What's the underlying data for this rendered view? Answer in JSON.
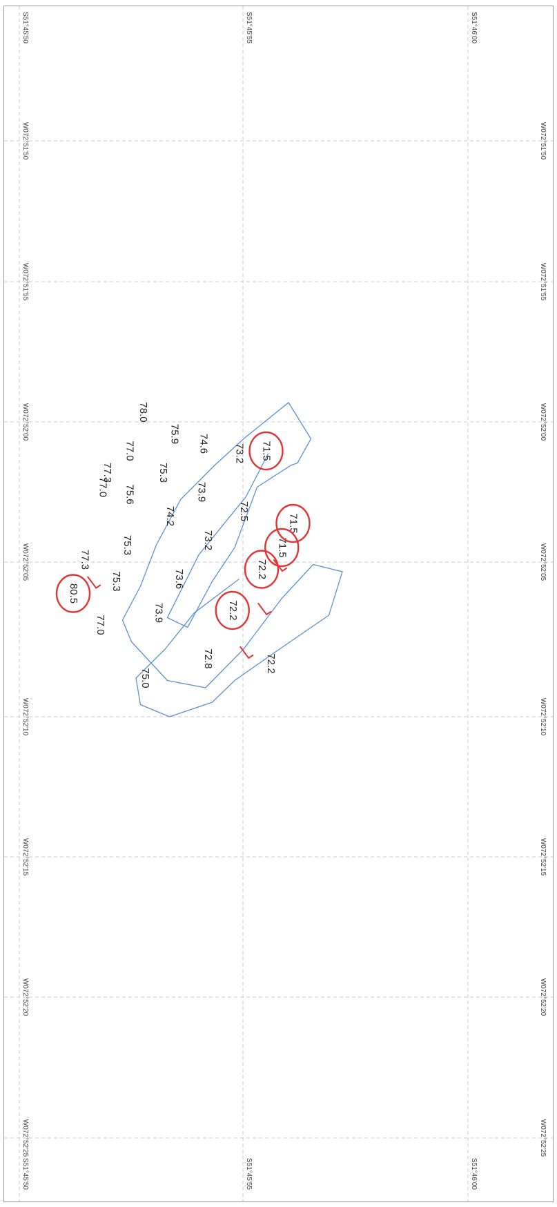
{
  "map": {
    "border_color": "#9a9a9a",
    "grid_color": "#c8c8c8",
    "track_color": "#5b8fd6",
    "circle_color": "#e23434",
    "lon_labels": [
      "W072°52'25",
      "W072°52'20",
      "W072°52'15",
      "W072°52'10",
      "W072°52'05",
      "W072°52'00",
      "W072°51'55",
      "W072°51'50"
    ],
    "lat_labels": [
      "S51°45'50",
      "S51°45'55",
      "S51°46'00"
    ],
    "track": [
      [
        5.55,
        5.45
      ],
      [
        5.05,
        4.55
      ],
      [
        4.0,
        3.35
      ],
      [
        3.3,
        2.05
      ],
      [
        3.75,
        1.85
      ],
      [
        4.3,
        2.8
      ],
      [
        4.8,
        3.5
      ],
      [
        5.3,
        4.75
      ],
      [
        6.05,
        5.2
      ],
      [
        6.2,
        5.25
      ],
      [
        6.5,
        5.75
      ],
      [
        6.0,
        6.5
      ],
      [
        5.0,
        5.75
      ],
      [
        4.35,
        5.2
      ],
      [
        3.6,
        4.5
      ],
      [
        3.05,
        3.55
      ],
      [
        2.7,
        2.7
      ],
      [
        2.3,
        2.0
      ],
      [
        2.5,
        1.55
      ],
      [
        3.3,
        0.75
      ],
      [
        4.15,
        0.6
      ],
      [
        5.0,
        1.4
      ],
      [
        5.85,
        2.45
      ],
      [
        6.55,
        3.15
      ],
      [
        7.2,
        3.0
      ],
      [
        6.9,
        2.1
      ],
      [
        5.8,
        1.4
      ],
      [
        4.8,
        0.75
      ],
      [
        4.3,
        0.3
      ],
      [
        3.35,
        0.0
      ],
      [
        2.7,
        0.25
      ],
      [
        2.6,
        0.8
      ],
      [
        3.25,
        1.4
      ],
      [
        3.9,
        2.15
      ],
      [
        4.9,
        2.85
      ]
    ],
    "readings": [
      {
        "value": "71.5",
        "x": 5.5,
        "y": 5.5,
        "circled": true
      },
      {
        "value": "71.5",
        "x": 6.1,
        "y": 4.0,
        "circled": true
      },
      {
        "value": "71.5",
        "x": 5.85,
        "y": 3.5,
        "circled": true
      },
      {
        "value": "72.2",
        "x": 5.4,
        "y": 3.05,
        "circled": true
      },
      {
        "value": "72.2",
        "x": 4.75,
        "y": 2.2,
        "circled": true
      },
      {
        "value": "72.2",
        "x": 5.6,
        "y": 1.1,
        "circled": false
      },
      {
        "value": "73.2",
        "x": 4.9,
        "y": 5.45,
        "circled": false
      },
      {
        "value": "74.6",
        "x": 4.1,
        "y": 5.65,
        "circled": false
      },
      {
        "value": "75.9",
        "x": 3.45,
        "y": 5.85,
        "circled": false
      },
      {
        "value": "78.0",
        "x": 2.75,
        "y": 6.3,
        "circled": false
      },
      {
        "value": "72.5",
        "x": 5.0,
        "y": 4.25,
        "circled": false
      },
      {
        "value": "73.9",
        "x": 4.05,
        "y": 4.65,
        "circled": false
      },
      {
        "value": "75.3",
        "x": 3.2,
        "y": 5.05,
        "circled": false
      },
      {
        "value": "77.0",
        "x": 2.45,
        "y": 5.5,
        "circled": false
      },
      {
        "value": "73.2",
        "x": 4.2,
        "y": 3.65,
        "circled": false
      },
      {
        "value": "74.2",
        "x": 3.35,
        "y": 4.15,
        "circled": false
      },
      {
        "value": "75.6",
        "x": 2.45,
        "y": 4.6,
        "circled": false
      },
      {
        "value": "77.3",
        "x": 1.95,
        "y": 5.05,
        "circled": false
      },
      {
        "value": "77.0",
        "x": 1.85,
        "y": 4.75,
        "circled": false
      },
      {
        "value": "73.6",
        "x": 3.55,
        "y": 2.85,
        "circled": false
      },
      {
        "value": "75.3",
        "x": 2.4,
        "y": 3.55,
        "circled": false
      },
      {
        "value": "72.8",
        "x": 4.2,
        "y": 1.2,
        "circled": false
      },
      {
        "value": "73.9",
        "x": 3.1,
        "y": 2.15,
        "circled": false
      },
      {
        "value": "75.3",
        "x": 2.15,
        "y": 2.8,
        "circled": false
      },
      {
        "value": "77.3",
        "x": 1.45,
        "y": 3.25,
        "circled": false
      },
      {
        "value": "80.5",
        "x": 1.2,
        "y": 2.55,
        "circled": true
      },
      {
        "value": "77.0",
        "x": 1.8,
        "y": 1.9,
        "circled": false
      },
      {
        "value": "75.0",
        "x": 2.8,
        "y": 0.8,
        "circled": false
      }
    ]
  }
}
